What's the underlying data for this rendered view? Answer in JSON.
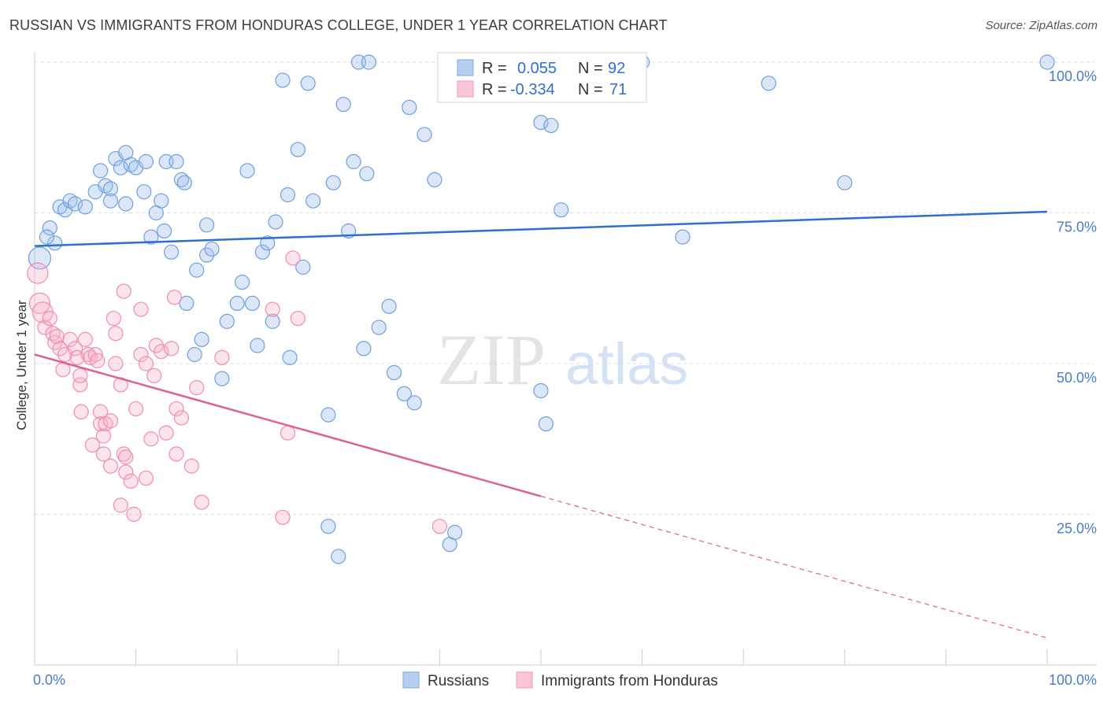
{
  "header": {
    "title": "RUSSIAN VS IMMIGRANTS FROM HONDURAS COLLEGE, UNDER 1 YEAR CORRELATION CHART",
    "source": "Source: ZipAtlas.com"
  },
  "watermark": {
    "zip": "ZIP",
    "atlas": "atlas"
  },
  "colors": {
    "blue": "#6fa0dc",
    "blue_line": "#2f6fce",
    "pink": "#f08cb0",
    "pink_line": "#e0608f",
    "tick": "#4a7cc7"
  },
  "chart_data": {
    "type": "scatter",
    "title": "RUSSIAN VS IMMIGRANTS FROM HONDURAS COLLEGE, UNDER 1 YEAR CORRELATION CHART",
    "xlabel": "",
    "ylabel": "College, Under 1 year",
    "xlim": [
      0,
      100
    ],
    "ylim": [
      0,
      100
    ],
    "x_tick_labels": [
      "0.0%",
      "100.0%"
    ],
    "y_tick_labels": [
      "100.0%",
      "75.0%",
      "50.0%",
      "25.0%"
    ],
    "y_ticks": [
      100,
      75,
      50,
      25
    ],
    "legend": {
      "r_label": "R =",
      "n_label": "N =",
      "entries": [
        {
          "name": "Russians",
          "r": "0.055",
          "n": "92"
        },
        {
          "name": "Immigrants from Honduras",
          "r": "-0.334",
          "n": "71"
        }
      ]
    },
    "series": [
      {
        "name": "Russians",
        "color": "#6fa0dc",
        "trend": {
          "x0": 0,
          "y0": 69.5,
          "x1": 100,
          "y1": 75.2,
          "solid_until": 100
        },
        "points": [
          [
            0.5,
            67.5
          ],
          [
            1.5,
            72.5
          ],
          [
            2,
            70
          ],
          [
            1.2,
            71
          ],
          [
            2.5,
            76
          ],
          [
            3,
            75.5
          ],
          [
            3.5,
            77
          ],
          [
            4,
            76.5
          ],
          [
            5,
            76
          ],
          [
            6,
            78.5
          ],
          [
            6.5,
            82
          ],
          [
            7,
            79.5
          ],
          [
            7.5,
            79
          ],
          [
            8,
            84
          ],
          [
            7.5,
            77
          ],
          [
            8.5,
            82.5
          ],
          [
            9,
            85
          ],
          [
            9,
            76.5
          ],
          [
            9.5,
            83
          ],
          [
            10,
            82.5
          ],
          [
            11,
            83.5
          ],
          [
            10.8,
            78.5
          ],
          [
            11.5,
            71
          ],
          [
            12,
            75
          ],
          [
            12.5,
            77
          ],
          [
            12.8,
            72
          ],
          [
            13,
            83.5
          ],
          [
            14,
            83.5
          ],
          [
            14.5,
            80.5
          ],
          [
            14.8,
            80
          ],
          [
            13.5,
            68.5
          ],
          [
            15,
            60
          ],
          [
            16,
            65.5
          ],
          [
            16.5,
            54
          ],
          [
            17,
            73
          ],
          [
            17,
            68
          ],
          [
            17.5,
            69
          ],
          [
            15.8,
            51.5
          ],
          [
            18.5,
            47.5
          ],
          [
            19,
            57
          ],
          [
            20,
            60
          ],
          [
            20.5,
            63.5
          ],
          [
            21,
            82
          ],
          [
            21.5,
            60
          ],
          [
            22,
            53
          ],
          [
            22.5,
            68.5
          ],
          [
            23,
            70
          ],
          [
            23.5,
            57
          ],
          [
            23.8,
            73.5
          ],
          [
            24.5,
            97
          ],
          [
            25,
            78
          ],
          [
            25.2,
            51
          ],
          [
            26,
            85.5
          ],
          [
            26.5,
            66
          ],
          [
            27,
            96.5
          ],
          [
            27.5,
            77
          ],
          [
            29,
            23
          ],
          [
            29,
            41.5
          ],
          [
            29.5,
            80
          ],
          [
            30,
            18
          ],
          [
            30.5,
            93
          ],
          [
            31,
            72
          ],
          [
            31.5,
            83.5
          ],
          [
            32,
            100
          ],
          [
            32.5,
            52.5
          ],
          [
            32.8,
            81.5
          ],
          [
            33,
            100
          ],
          [
            34,
            56
          ],
          [
            35,
            59.5
          ],
          [
            35.5,
            48.5
          ],
          [
            36.5,
            45
          ],
          [
            37,
            92.5
          ],
          [
            37.5,
            43.5
          ],
          [
            38.5,
            88
          ],
          [
            39.5,
            80.5
          ],
          [
            41,
            20
          ],
          [
            41.5,
            22
          ],
          [
            47,
            100
          ],
          [
            50.5,
            40
          ],
          [
            50,
            45.5
          ],
          [
            50,
            90
          ],
          [
            51,
            89.5
          ],
          [
            52,
            75.5
          ],
          [
            56,
            100
          ],
          [
            60,
            100
          ],
          [
            64,
            71
          ],
          [
            72.5,
            96.5
          ],
          [
            80,
            80
          ],
          [
            100,
            100
          ]
        ]
      },
      {
        "name": "Immigrants from Honduras",
        "color": "#f08cb0",
        "trend": {
          "x0": 0,
          "y0": 51.5,
          "x1": 100,
          "y1": 4.5,
          "solid_until": 50
        },
        "points": [
          [
            0.3,
            65
          ],
          [
            0.5,
            60
          ],
          [
            0.8,
            58.5
          ],
          [
            1,
            56
          ],
          [
            1.5,
            57.5
          ],
          [
            1.8,
            55
          ],
          [
            2,
            53.5
          ],
          [
            2.2,
            54.5
          ],
          [
            2.5,
            52.5
          ],
          [
            3,
            51.5
          ],
          [
            2.8,
            49
          ],
          [
            3.5,
            54
          ],
          [
            4,
            52.5
          ],
          [
            4.2,
            51
          ],
          [
            4.5,
            46.5
          ],
          [
            4.5,
            48
          ],
          [
            4.6,
            42
          ],
          [
            5,
            54
          ],
          [
            5.3,
            51.5
          ],
          [
            5.5,
            51
          ],
          [
            5.7,
            36.5
          ],
          [
            6,
            51.5
          ],
          [
            6.2,
            50.5
          ],
          [
            6.5,
            42
          ],
          [
            6.5,
            40
          ],
          [
            6.8,
            38
          ],
          [
            6.8,
            35
          ],
          [
            7,
            40
          ],
          [
            7.5,
            40.5
          ],
          [
            7.5,
            33
          ],
          [
            7.8,
            57.5
          ],
          [
            8,
            50
          ],
          [
            8,
            55
          ],
          [
            8.5,
            26.5
          ],
          [
            8.5,
            46.5
          ],
          [
            8.8,
            35
          ],
          [
            8.8,
            62
          ],
          [
            9,
            34.5
          ],
          [
            9,
            32
          ],
          [
            9.5,
            30.5
          ],
          [
            9.8,
            25
          ],
          [
            10,
            42.5
          ],
          [
            10.5,
            59
          ],
          [
            10.5,
            51.5
          ],
          [
            11,
            31
          ],
          [
            11,
            50
          ],
          [
            11.5,
            37.5
          ],
          [
            11.8,
            48
          ],
          [
            12,
            53
          ],
          [
            12.5,
            52
          ],
          [
            13,
            38.5
          ],
          [
            13.5,
            52.5
          ],
          [
            13.8,
            61
          ],
          [
            14,
            35
          ],
          [
            14,
            42.5
          ],
          [
            14.5,
            41
          ],
          [
            15.5,
            33
          ],
          [
            16,
            46
          ],
          [
            16.5,
            27
          ],
          [
            18.5,
            51
          ],
          [
            23.5,
            59
          ],
          [
            24.5,
            24.5
          ],
          [
            25,
            38.5
          ],
          [
            25.5,
            67.5
          ],
          [
            26,
            57.5
          ],
          [
            40,
            23
          ]
        ]
      }
    ]
  }
}
